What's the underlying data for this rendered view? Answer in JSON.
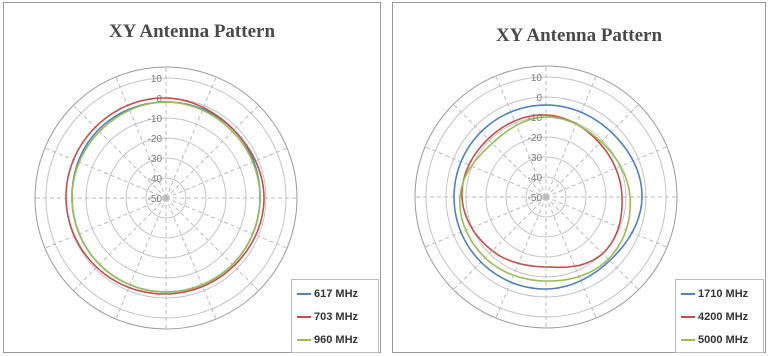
{
  "colors": {
    "grid": "#c4c4c4",
    "spoke": "#bbbbbb",
    "tick_label": "#7a7a7a"
  },
  "chart_data": [
    {
      "type": "polar-line",
      "title": "XY Antenna Pattern",
      "radial_axis": {
        "min": -50,
        "max": 10,
        "step": 10,
        "ticks": [
          "10",
          "0",
          "-10",
          "-20",
          "-30",
          "-40",
          "-50"
        ]
      },
      "angular_axis": {
        "step_degrees": 22.5,
        "grid": true
      },
      "legend_position": "bottom-right",
      "series": [
        {
          "name": "617 MHz",
          "color": "#4f81bd",
          "angles": [
            0,
            45,
            90,
            135,
            180,
            225,
            270,
            315
          ],
          "values": [
            -2,
            -2,
            -3,
            -3,
            -3,
            -3,
            -3,
            -2
          ]
        },
        {
          "name": "703 MHz",
          "color": "#c0504d",
          "angles": [
            0,
            45,
            90,
            135,
            180,
            225,
            270,
            315
          ],
          "values": [
            0,
            -2,
            -1,
            -2,
            -2,
            -1,
            0,
            0
          ]
        },
        {
          "name": "960 MHz",
          "color": "#9bbb59",
          "angles": [
            0,
            45,
            90,
            135,
            180,
            225,
            270,
            315
          ],
          "values": [
            -2,
            -3,
            -3,
            -3,
            -3,
            -3,
            -3,
            -3
          ]
        }
      ]
    },
    {
      "type": "polar-line",
      "title": "XY Antenna Pattern",
      "radial_axis": {
        "min": -50,
        "max": 10,
        "step": 10,
        "ticks": [
          "10",
          "0",
          "-10",
          "-20",
          "-30",
          "-40",
          "-50"
        ]
      },
      "angular_axis": {
        "step_degrees": 22.5,
        "grid": true
      },
      "legend_position": "bottom-right",
      "series": [
        {
          "name": "1710 MHz",
          "color": "#4f81bd",
          "angles": [
            0,
            45,
            90,
            135,
            180,
            225,
            270,
            315
          ],
          "values": [
            -4,
            -4,
            -2,
            -5,
            -4,
            -4,
            -4,
            -4
          ]
        },
        {
          "name": "4200 MHz",
          "color": "#c0504d",
          "angles": [
            0,
            45,
            90,
            135,
            180,
            225,
            270,
            315
          ],
          "values": [
            -9,
            -12,
            -12,
            -10,
            -15,
            -12,
            -8,
            -9
          ]
        },
        {
          "name": "5000 MHz",
          "color": "#9bbb59",
          "angles": [
            0,
            45,
            90,
            135,
            180,
            225,
            270,
            315
          ],
          "values": [
            -10,
            -11,
            -8,
            -6,
            -8,
            -7,
            -7,
            -12
          ]
        }
      ]
    }
  ]
}
